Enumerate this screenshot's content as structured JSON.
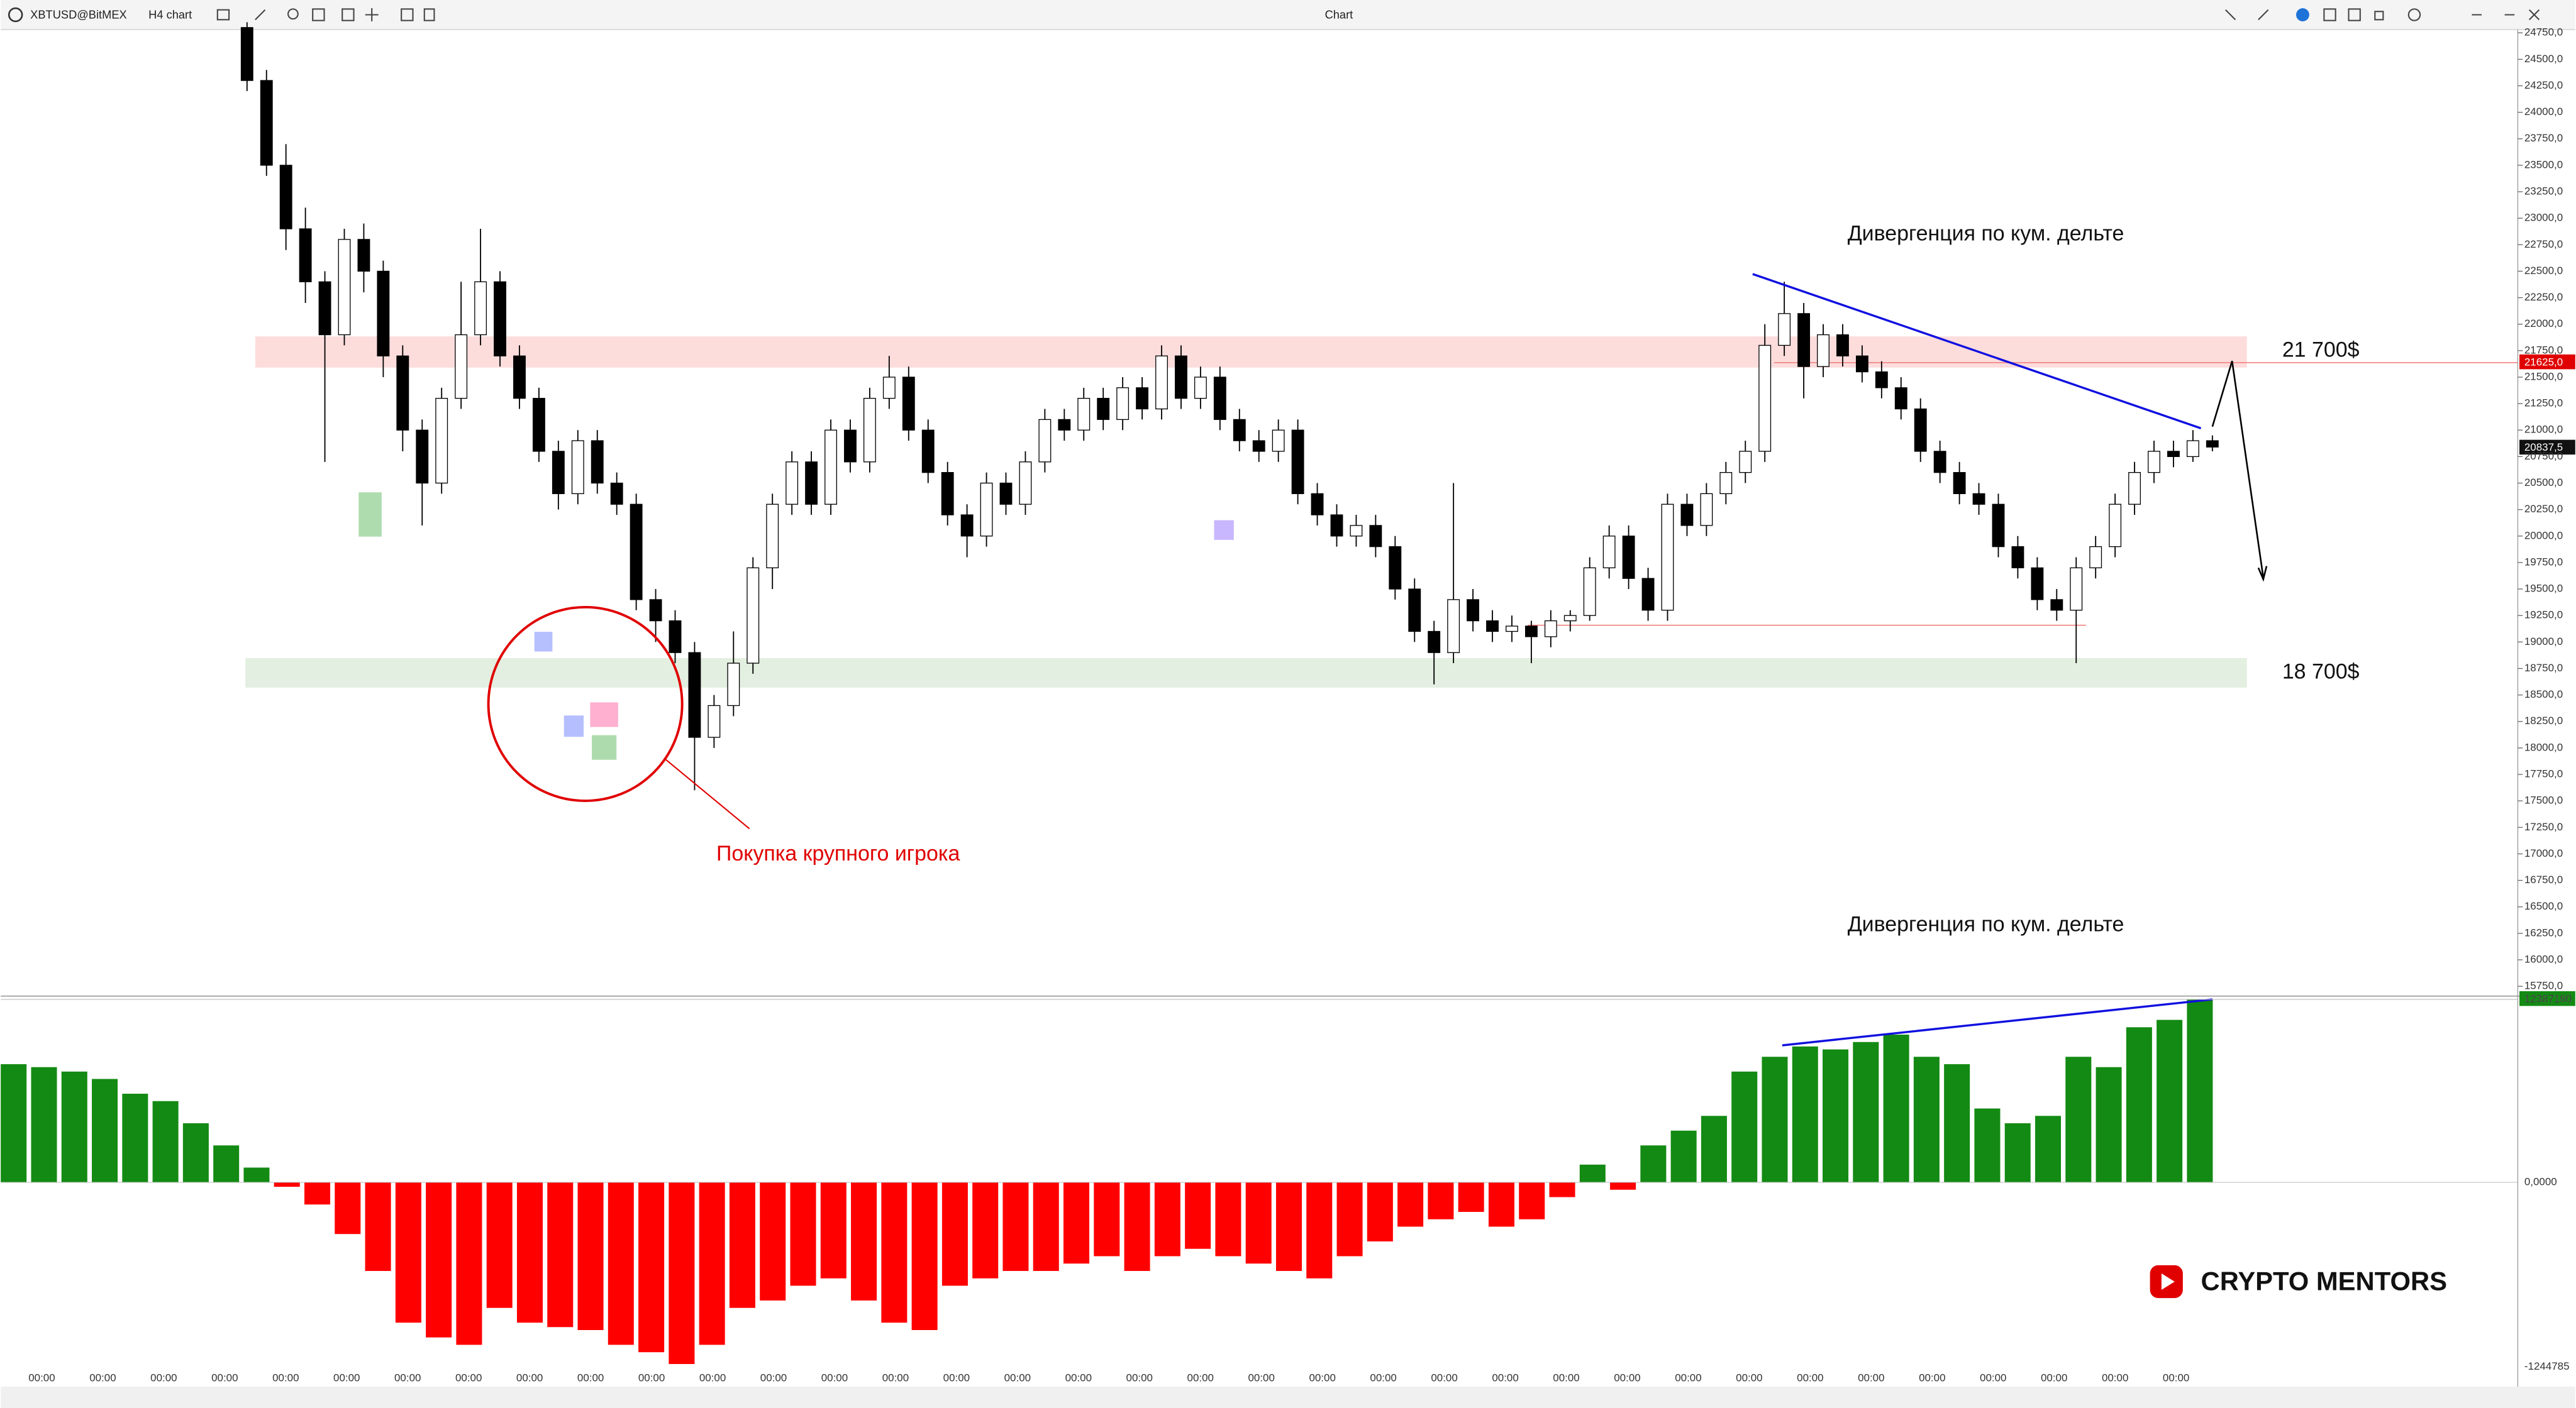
{
  "toolbar": {
    "symbol": "XBTUSD@BitMEX",
    "interval": "H4 chart",
    "title": "Chart"
  },
  "annotations": {
    "divergence_price": "Дивергенция по кум. дельте",
    "divergence_delta": "Дивергенция по кум. дельте",
    "resistance": "21 700$",
    "support": "18 700$",
    "big_player": "Покупка крупного игрока",
    "brand": "CRYPTO MENTORS"
  },
  "price_tags": {
    "level": "21625,0",
    "last": "20837,5",
    "delta_last": "12387180"
  },
  "time_labels": [
    "00:00",
    "00:00",
    "00:00",
    "00:00",
    "00:00",
    "00:00",
    "00:00",
    "00:00",
    "00:00",
    "00:00",
    "00:00",
    "00:00",
    "00:00",
    "00:00",
    "00:00",
    "00:00",
    "00:00",
    "00:00",
    "00:00",
    "00:00",
    "00:00",
    "00:00",
    "00:00",
    "00:00",
    "00:00",
    "00:00",
    "00:00",
    "00:00",
    "00:00",
    "00:00",
    "00:00",
    "00:00",
    "00:00",
    "00:00",
    "00:00",
    "00:00"
  ],
  "chart_data": [
    {
      "type": "candlestick",
      "ylim": [
        15673,
        24781
      ],
      "yticks": [
        {
          "value": 15750,
          "label": "15750,0"
        },
        {
          "value": 16000,
          "label": "16000,0"
        },
        {
          "value": 16250,
          "label": "16250,0"
        },
        {
          "value": 16500,
          "label": "16500,0"
        },
        {
          "value": 16750,
          "label": "16750,0"
        },
        {
          "value": 17000,
          "label": "17000,0"
        },
        {
          "value": 17250,
          "label": "17250,0"
        },
        {
          "value": 17500,
          "label": "17500,0"
        },
        {
          "value": 17750,
          "label": "17750,0"
        },
        {
          "value": 18000,
          "label": "18000,0"
        },
        {
          "value": 18250,
          "label": "18250,0"
        },
        {
          "value": 18500,
          "label": "18500,0"
        },
        {
          "value": 18750,
          "label": "18750,0"
        },
        {
          "value": 19000,
          "label": "19000,0"
        },
        {
          "value": 19250,
          "label": "19250,0"
        },
        {
          "value": 19500,
          "label": "19500,0"
        },
        {
          "value": 19750,
          "label": "19750,0"
        },
        {
          "value": 20000,
          "label": "20000,0"
        },
        {
          "value": 20250,
          "label": "20250,0"
        },
        {
          "value": 20500,
          "label": "20500,0"
        },
        {
          "value": 20750,
          "label": "20750,0"
        },
        {
          "value": 21000,
          "label": "21000,0"
        },
        {
          "value": 21250,
          "label": "21250,0"
        },
        {
          "value": 21500,
          "label": "21500,0"
        },
        {
          "value": 21750,
          "label": "21750,0"
        },
        {
          "value": 22000,
          "label": "22000,0"
        },
        {
          "value": 22250,
          "label": "22250,0"
        },
        {
          "value": 22500,
          "label": "22500,0"
        },
        {
          "value": 22750,
          "label": "22750,0"
        },
        {
          "value": 23000,
          "label": "23000,0"
        },
        {
          "value": 23250,
          "label": "23250,0"
        },
        {
          "value": 23500,
          "label": "23500,0"
        },
        {
          "value": 23750,
          "label": "23750,0"
        },
        {
          "value": 24000,
          "label": "24000,0"
        },
        {
          "value": 24250,
          "label": "24250,0"
        },
        {
          "value": 24500,
          "label": "24500,0"
        },
        {
          "value": 24750,
          "label": "24750,0"
        }
      ],
      "up_color": "#ffffff",
      "down_color": "#000000",
      "candles": [
        [
          24800,
          24850,
          24200,
          24300
        ],
        [
          24300,
          24400,
          23400,
          23500
        ],
        [
          23500,
          23700,
          22700,
          22900
        ],
        [
          22900,
          23100,
          22200,
          22400
        ],
        [
          22400,
          22500,
          20700,
          21900
        ],
        [
          21900,
          22900,
          21800,
          22800
        ],
        [
          22800,
          22950,
          22300,
          22500
        ],
        [
          22500,
          22600,
          21500,
          21700
        ],
        [
          21700,
          21800,
          20800,
          21000
        ],
        [
          21000,
          21100,
          20100,
          20500
        ],
        [
          20500,
          21400,
          20400,
          21300
        ],
        [
          21300,
          22400,
          21200,
          21900
        ],
        [
          21900,
          22900,
          21800,
          22400
        ],
        [
          22400,
          22500,
          21600,
          21700
        ],
        [
          21700,
          21800,
          21200,
          21300
        ],
        [
          21300,
          21400,
          20700,
          20800
        ],
        [
          20800,
          20900,
          20250,
          20400
        ],
        [
          20400,
          21000,
          20300,
          20900
        ],
        [
          20900,
          21000,
          20400,
          20500
        ],
        [
          20500,
          20600,
          20200,
          20300
        ],
        [
          20300,
          20400,
          19300,
          19400
        ],
        [
          19400,
          19500,
          19000,
          19200
        ],
        [
          19200,
          19300,
          18800,
          18900
        ],
        [
          18900,
          19000,
          17600,
          18100
        ],
        [
          18100,
          18500,
          18000,
          18400
        ],
        [
          18400,
          19100,
          18300,
          18800
        ],
        [
          18800,
          19800,
          18700,
          19700
        ],
        [
          19700,
          20400,
          19500,
          20300
        ],
        [
          20300,
          20800,
          20200,
          20700
        ],
        [
          20700,
          20800,
          20200,
          20300
        ],
        [
          20300,
          21100,
          20200,
          21000
        ],
        [
          21000,
          21100,
          20600,
          20700
        ],
        [
          20700,
          21400,
          20600,
          21300
        ],
        [
          21300,
          21700,
          21200,
          21500
        ],
        [
          21500,
          21600,
          20900,
          21000
        ],
        [
          21000,
          21100,
          20500,
          20600
        ],
        [
          20600,
          20700,
          20100,
          20200
        ],
        [
          20200,
          20300,
          19800,
          20000
        ],
        [
          20000,
          20600,
          19900,
          20500
        ],
        [
          20500,
          20600,
          20200,
          20300
        ],
        [
          20300,
          20800,
          20200,
          20700
        ],
        [
          20700,
          21200,
          20600,
          21100
        ],
        [
          21100,
          21200,
          20900,
          21000
        ],
        [
          21000,
          21400,
          20900,
          21300
        ],
        [
          21300,
          21400,
          21000,
          21100
        ],
        [
          21100,
          21500,
          21000,
          21400
        ],
        [
          21400,
          21500,
          21100,
          21200
        ],
        [
          21200,
          21800,
          21100,
          21700
        ],
        [
          21700,
          21800,
          21200,
          21300
        ],
        [
          21300,
          21600,
          21200,
          21500
        ],
        [
          21500,
          21600,
          21000,
          21100
        ],
        [
          21100,
          21200,
          20800,
          20900
        ],
        [
          20900,
          21000,
          20700,
          20800
        ],
        [
          20800,
          21100,
          20700,
          21000
        ],
        [
          21000,
          21100,
          20300,
          20400
        ],
        [
          20400,
          20500,
          20100,
          20200
        ],
        [
          20200,
          20300,
          19900,
          20000
        ],
        [
          20000,
          20200,
          19900,
          20100
        ],
        [
          20100,
          20200,
          19800,
          19900
        ],
        [
          19900,
          20000,
          19400,
          19500
        ],
        [
          19500,
          19600,
          19000,
          19100
        ],
        [
          19100,
          19200,
          18600,
          18900
        ],
        [
          18900,
          20500,
          18800,
          19400
        ],
        [
          19400,
          19500,
          19100,
          19200
        ],
        [
          19200,
          19300,
          19000,
          19100
        ],
        [
          19100,
          19250,
          19000,
          19150
        ],
        [
          19150,
          19200,
          18800,
          19050
        ],
        [
          19050,
          19300,
          18950,
          19200
        ],
        [
          19200,
          19300,
          19100,
          19250
        ],
        [
          19250,
          19800,
          19200,
          19700
        ],
        [
          19700,
          20100,
          19600,
          20000
        ],
        [
          20000,
          20100,
          19500,
          19600
        ],
        [
          19600,
          19700,
          19200,
          19300
        ],
        [
          19300,
          20400,
          19200,
          20300
        ],
        [
          20300,
          20400,
          20000,
          20100
        ],
        [
          20100,
          20500,
          20000,
          20400
        ],
        [
          20400,
          20700,
          20300,
          20600
        ],
        [
          20600,
          20900,
          20500,
          20800
        ],
        [
          20800,
          22000,
          20700,
          21800
        ],
        [
          21800,
          22400,
          21700,
          22100
        ],
        [
          22100,
          22200,
          21300,
          21600
        ],
        [
          21600,
          22000,
          21500,
          21900
        ],
        [
          21900,
          22000,
          21600,
          21700
        ],
        [
          21700,
          21800,
          21450,
          21550
        ],
        [
          21550,
          21650,
          21300,
          21400
        ],
        [
          21400,
          21500,
          21100,
          21200
        ],
        [
          21200,
          21300,
          20700,
          20800
        ],
        [
          20800,
          20900,
          20500,
          20600
        ],
        [
          20600,
          20700,
          20300,
          20400
        ],
        [
          20400,
          20500,
          20200,
          20300
        ],
        [
          20300,
          20400,
          19800,
          19900
        ],
        [
          19900,
          20000,
          19600,
          19700
        ],
        [
          19700,
          19800,
          19300,
          19400
        ],
        [
          19400,
          19500,
          19200,
          19300
        ],
        [
          19300,
          19800,
          18800,
          19700
        ],
        [
          19700,
          20000,
          19600,
          19900
        ],
        [
          19900,
          20400,
          19800,
          20300
        ],
        [
          20300,
          20700,
          20200,
          20600
        ],
        [
          20600,
          20900,
          20500,
          20800
        ],
        [
          20800,
          20900,
          20650,
          20750
        ],
        [
          20750,
          21000,
          20700,
          20900
        ],
        [
          20900,
          20950,
          20800,
          20840
        ]
      ]
    },
    {
      "type": "bar",
      "ylim": [
        -12500000,
        12387180
      ],
      "yticks": [
        {
          "value": 12387180,
          "label": "12387180"
        },
        {
          "value": 0,
          "label": "0,0000"
        }
      ],
      "bottom_label": "-1244785",
      "positive_color": "#138a13",
      "negative_color": "#ff0000",
      "values": [
        8000000,
        7800000,
        7500000,
        7000000,
        6000000,
        5500000,
        4000000,
        2500000,
        1000000,
        -300000,
        -1500000,
        -3500000,
        -6000000,
        -9500000,
        -10500000,
        -11000000,
        -8500000,
        -9500000,
        -9800000,
        -10000000,
        -11000000,
        -11500000,
        -12300000,
        -11000000,
        -8500000,
        -8000000,
        -7000000,
        -6500000,
        -8000000,
        -9500000,
        -10000000,
        -7000000,
        -6500000,
        -6000000,
        -6000000,
        -5500000,
        -5000000,
        -6000000,
        -5000000,
        -4500000,
        -5000000,
        -5500000,
        -6000000,
        -6500000,
        -5000000,
        -4000000,
        -3000000,
        -2500000,
        -2000000,
        -3000000,
        -2500000,
        -1000000,
        1200000,
        -500000,
        2500000,
        3500000,
        4500000,
        7500000,
        8500000,
        9200000,
        9000000,
        9500000,
        10000000,
        8500000,
        8000000,
        5000000,
        4000000,
        4500000,
        8500000,
        7800000,
        10500000,
        11000000,
        12387180
      ]
    }
  ]
}
